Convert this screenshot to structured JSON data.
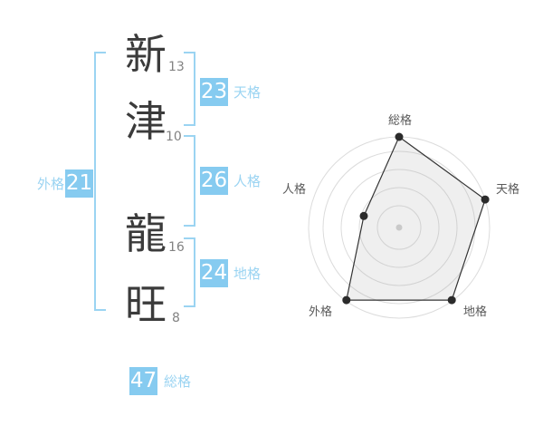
{
  "colors": {
    "badge_blue": "#86cbf0",
    "bracket_blue": "#9bd4f2",
    "kanji_gray": "#3b3b3b",
    "strokes_gray": "#828282"
  },
  "name_panel": {
    "surname": [
      {
        "char": "新",
        "strokes": "13"
      },
      {
        "char": "津",
        "strokes": "10"
      }
    ],
    "given_name": [
      {
        "char": "龍",
        "strokes": "16"
      },
      {
        "char": "旺",
        "strokes": "8"
      }
    ],
    "badges": [
      {
        "id": "tenkaku",
        "value": "23",
        "label": "天格"
      },
      {
        "id": "jinkaku",
        "value": "26",
        "label": "人格"
      },
      {
        "id": "chikaku",
        "value": "24",
        "label": "地格"
      },
      {
        "id": "gaikaku",
        "value": "21",
        "label": "外格"
      },
      {
        "id": "soukaku",
        "value": "47",
        "label": "総格"
      }
    ]
  },
  "chart_data": {
    "type": "radar",
    "categories": [
      "総格",
      "天格",
      "地格",
      "外格",
      "人格"
    ],
    "values": [
      47,
      23,
      24,
      21,
      26
    ],
    "radius_pct": [
      100,
      100,
      99,
      99,
      41
    ],
    "rings_pct": [
      24,
      44,
      64,
      84,
      100
    ],
    "start_angle_deg": 90,
    "direction": "clockwise",
    "grid_color": "#dcdcdc",
    "polygon_fill": "rgba(168,168,168,0.18)",
    "polygon_stroke": "#333333",
    "dot_color": "#2b2b2b",
    "center_dot_color": "#c9c9c9",
    "label_color": "#5a5a5a"
  }
}
